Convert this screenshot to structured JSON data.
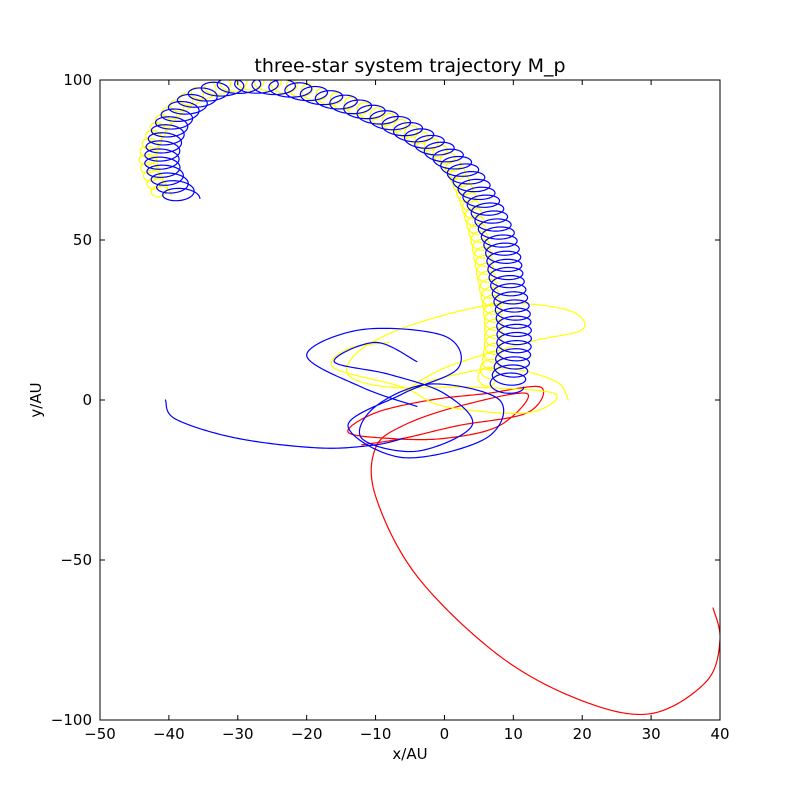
{
  "chart_data": {
    "type": "line",
    "title": "three-star system trajectory M_p",
    "xlabel": "x/AU",
    "ylabel": "y/AU",
    "xlim": [
      -50,
      40
    ],
    "ylim": [
      -100,
      100
    ],
    "xticks": [
      -50,
      -40,
      -30,
      -20,
      -10,
      0,
      10,
      20,
      30,
      40
    ],
    "yticks": [
      -100,
      -50,
      0,
      50,
      100
    ],
    "xtick_labels": [
      "−50",
      "−40",
      "−30",
      "−20",
      "−10",
      "0",
      "10",
      "20",
      "30",
      "40"
    ],
    "ytick_labels": [
      "−100",
      "−50",
      "0",
      "50",
      "100"
    ],
    "grid": false,
    "series": [
      {
        "color": "#0000ff",
        "trajectory": {
          "guide": [
            [
              -38,
              63
            ],
            [
              -41,
              74
            ],
            [
              -39,
              88
            ],
            [
              -33,
              97
            ],
            [
              -25,
              98
            ],
            [
              -15,
              93
            ],
            [
              -6,
              85
            ],
            [
              1,
              75
            ],
            [
              5,
              64
            ],
            [
              8,
              50
            ],
            [
              9,
              38
            ],
            [
              10,
              26
            ],
            [
              10,
              14
            ],
            [
              9,
              4
            ]
          ],
          "loop_count": 60,
          "loop_rx": 2.5,
          "loop_ry": 2.5
        },
        "curves": [
          [
            [
              -40.5,
              0
            ],
            [
              -39,
              -6
            ],
            [
              -30,
              -12
            ],
            [
              -18,
              -15
            ],
            [
              -10,
              -14
            ],
            [
              -6,
              -12
            ]
          ],
          [
            [
              -4,
              -2
            ],
            [
              -12,
              4
            ],
            [
              -20,
              14
            ],
            [
              -12,
              22
            ],
            [
              0,
              20
            ],
            [
              2,
              10
            ],
            [
              -6,
              2
            ],
            [
              -14,
              -8
            ],
            [
              -6,
              -18
            ],
            [
              6,
              -12
            ],
            [
              8,
              0
            ],
            [
              -2,
              5
            ],
            [
              -10,
              -2
            ],
            [
              -12,
              -12
            ],
            [
              -4,
              -16
            ],
            [
              4,
              -8
            ],
            [
              0,
              2
            ],
            [
              -8,
              8
            ],
            [
              -16,
              12
            ],
            [
              -10,
              18
            ],
            [
              -4,
              12
            ]
          ]
        ]
      },
      {
        "color": "#ffff00",
        "trajectory": {
          "guide": [
            [
              -41,
              64
            ],
            [
              -43,
              76
            ],
            [
              -40,
              89
            ],
            [
              -34,
              97
            ],
            [
              -26,
              99
            ],
            [
              -16,
              94
            ],
            [
              -7,
              86
            ],
            [
              0,
              76
            ],
            [
              3,
              65
            ],
            [
              5,
              51
            ],
            [
              6,
              39
            ],
            [
              7,
              27
            ],
            [
              7,
              15
            ],
            [
              6,
              6
            ]
          ],
          "loop_count": 60,
          "loop_rx": 1.3,
          "loop_ry": 2.3
        },
        "curves": [
          [
            [
              18,
              0
            ],
            [
              16,
              6
            ],
            [
              8,
              10
            ],
            [
              -2,
              6
            ],
            [
              -6,
              2
            ],
            [
              0,
              10
            ],
            [
              12,
              18
            ],
            [
              20,
              22
            ],
            [
              18,
              28
            ],
            [
              8,
              30
            ],
            [
              -4,
              24
            ],
            [
              -12,
              16
            ],
            [
              -14,
              8
            ],
            [
              -8,
              4
            ],
            [
              4,
              4
            ],
            [
              16,
              2
            ],
            [
              12,
              -4
            ],
            [
              0,
              -2
            ],
            [
              -6,
              4
            ],
            [
              -16,
              10
            ],
            [
              -14,
              16
            ],
            [
              -8,
              18
            ]
          ]
        ]
      },
      {
        "color": "#ff0000",
        "curves": [
          [
            [
              39,
              -65
            ],
            [
              40,
              -75
            ],
            [
              38,
              -88
            ],
            [
              30,
              -98
            ],
            [
              20,
              -94
            ],
            [
              8,
              -80
            ],
            [
              -4,
              -55
            ],
            [
              -10,
              -30
            ],
            [
              -10,
              -15
            ],
            [
              -6,
              -8
            ],
            [
              2,
              -2
            ],
            [
              12,
              2
            ],
            [
              8,
              -8
            ],
            [
              0,
              -12
            ],
            [
              -8,
              -12
            ],
            [
              -14,
              -10
            ],
            [
              -10,
              -4
            ],
            [
              -2,
              0
            ],
            [
              6,
              2
            ],
            [
              14,
              4
            ],
            [
              12,
              -4
            ],
            [
              2,
              -8
            ],
            [
              -6,
              -12
            ],
            [
              -12,
              -14
            ]
          ]
        ]
      }
    ]
  }
}
